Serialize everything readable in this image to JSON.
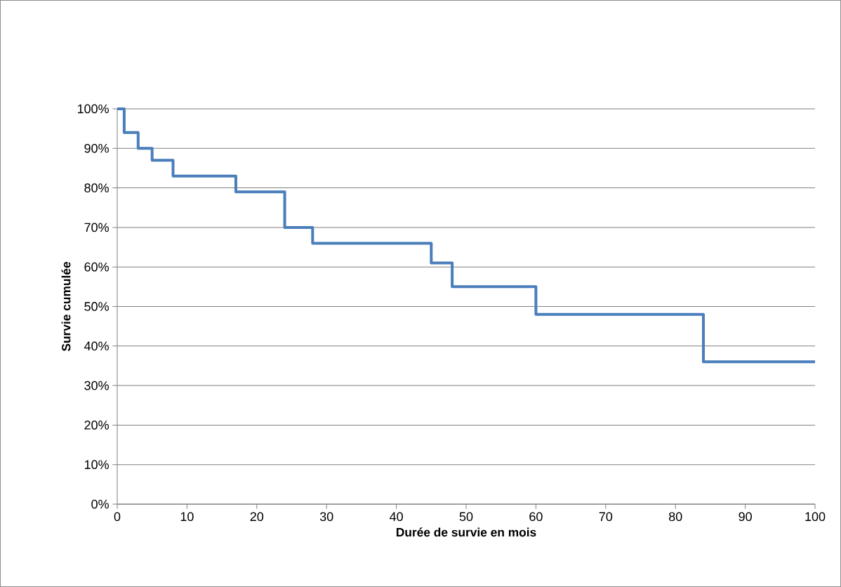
{
  "chart_data": {
    "type": "step",
    "xlabel": "Durée de survie en mois",
    "ylabel": "Survie cumulée",
    "x": [
      0,
      1,
      3,
      5,
      8,
      17,
      24,
      28,
      45,
      48,
      60,
      84,
      100
    ],
    "values": [
      100,
      94,
      90,
      87,
      83,
      79,
      70,
      66,
      61,
      55,
      48,
      36,
      36
    ],
    "color": "#4a7ebb",
    "grid": "y",
    "marker": "none",
    "line_style": "solid",
    "xlim": [
      0,
      100
    ],
    "xticks": [
      0,
      10,
      20,
      30,
      40,
      50,
      60,
      70,
      80,
      90,
      100
    ],
    "ylim": [
      0,
      100
    ],
    "yticks": [
      {
        "value": 0,
        "label": "0%"
      },
      {
        "value": 10,
        "label": "10%"
      },
      {
        "value": 20,
        "label": "20%"
      },
      {
        "value": 30,
        "label": "30%"
      },
      {
        "value": 40,
        "label": "40%"
      },
      {
        "value": 50,
        "label": "50%"
      },
      {
        "value": 60,
        "label": "60%"
      },
      {
        "value": 70,
        "label": "70%"
      },
      {
        "value": 80,
        "label": "80%"
      },
      {
        "value": 90,
        "label": "90%"
      },
      {
        "value": 100,
        "label": "100%"
      }
    ]
  }
}
